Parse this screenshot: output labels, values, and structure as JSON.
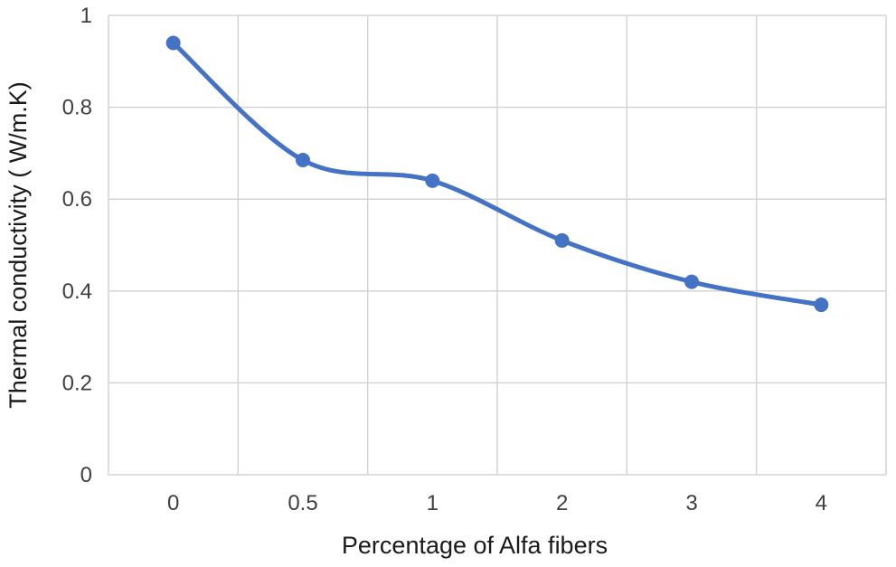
{
  "chart_data": {
    "type": "line",
    "title": "",
    "xlabel": "Percentage of Alfa fibers",
    "ylabel": "Thermal conductivity ( W/m.K)",
    "categories": [
      "0",
      "0.5",
      "1",
      "2",
      "3",
      "4"
    ],
    "series": [
      {
        "name": "",
        "values": [
          0.94,
          0.685,
          0.64,
          0.51,
          0.42,
          0.37
        ],
        "color": "#4472c4"
      }
    ],
    "ylim": [
      0,
      1
    ],
    "yticks": [
      "0",
      "0.2",
      "0.4",
      "0.6",
      "0.8",
      "1"
    ],
    "smooth": true,
    "markers": true,
    "grid": true,
    "legend": "none"
  }
}
